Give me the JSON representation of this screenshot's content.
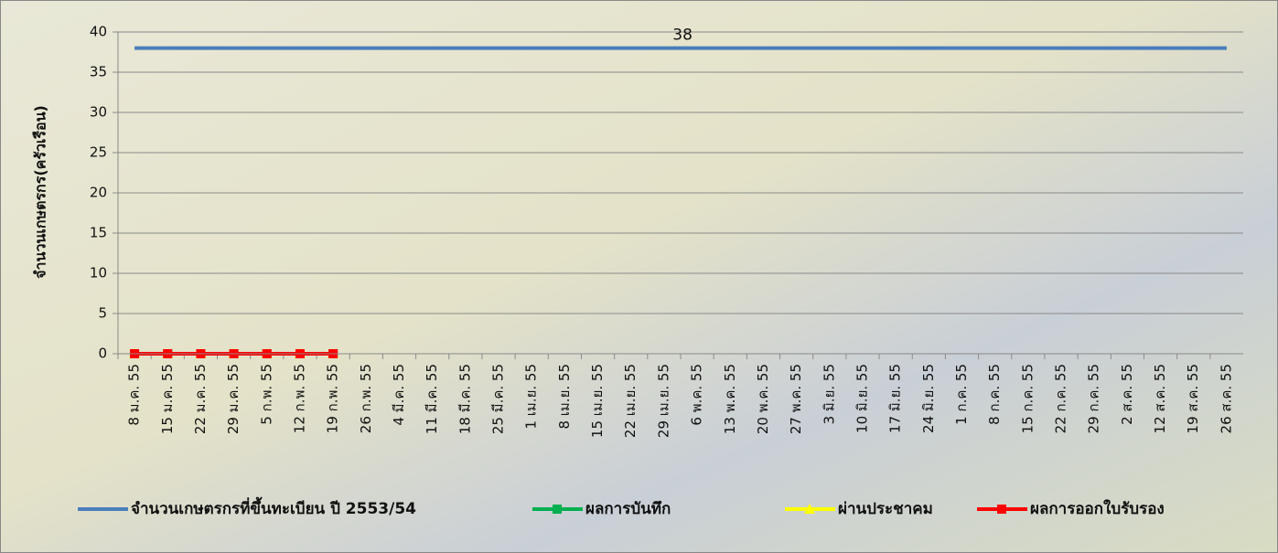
{
  "chart_data": {
    "type": "line",
    "y_label": "จำนวนเกษตรกร(ครัวเรือน)",
    "categories": [
      "8 ม.ค. 55",
      "15 ม.ค. 55",
      "22 ม.ค. 55",
      "29 ม.ค. 55",
      "5 ก.พ. 55",
      "12 ก.พ. 55",
      "19 ก.พ. 55",
      "26 ก.พ. 55",
      "4 มี.ค. 55",
      "11 มี.ค. 55",
      "18 มี.ค. 55",
      "25 มี.ค. 55",
      "1 เม.ย. 55",
      "8 เม.ย. 55",
      "15 เม.ย. 55",
      "22 เม.ย. 55",
      "29 เม.ย. 55",
      "6 พ.ค. 55",
      "13 พ.ค. 55",
      "20 พ.ค. 55",
      "27 พ.ค. 55",
      "3 มิ.ย. 55",
      "10 มิ.ย. 55",
      "17 มิ.ย. 55",
      "24 มิ.ย. 55",
      "1 ก.ค. 55",
      "8 ก.ค. 55",
      "15 ก.ค. 55",
      "22 ก.ค. 55",
      "29 ก.ค. 55",
      "2 ส.ค. 55",
      "12 ส.ค. 55",
      "19 ส.ค. 55",
      "26 ส.ค. 55"
    ],
    "series": [
      {
        "name": "จำนวนเกษตรกรที่ขึ้นทะเบียน ปี 2553/54",
        "color": "#4a7ebb",
        "marker": "none",
        "values": [
          38,
          38,
          38,
          38,
          38,
          38,
          38,
          38,
          38,
          38,
          38,
          38,
          38,
          38,
          38,
          38,
          38,
          38,
          38,
          38,
          38,
          38,
          38,
          38,
          38,
          38,
          38,
          38,
          38,
          38,
          38,
          38,
          38,
          38
        ],
        "value_labels": [
          null,
          null,
          null,
          null,
          null,
          null,
          null,
          null,
          null,
          null,
          null,
          null,
          null,
          null,
          null,
          null,
          null,
          "38",
          null,
          null,
          null,
          null,
          null,
          null,
          null,
          null,
          null,
          null,
          null,
          null,
          null,
          null,
          null,
          null
        ]
      },
      {
        "name": "ผลการบันทึก",
        "color": "#00b050",
        "marker": "square",
        "values": [
          0,
          0,
          0,
          0,
          0,
          0,
          0,
          null,
          null,
          null,
          null,
          null,
          null,
          null,
          null,
          null,
          null,
          null,
          null,
          null,
          null,
          null,
          null,
          null,
          null,
          null,
          null,
          null,
          null,
          null,
          null,
          null,
          null,
          null
        ]
      },
      {
        "name": "ผ่านประชาคม",
        "color": "#ffff00",
        "marker": "triangle",
        "values": [
          0,
          0,
          0,
          0,
          0,
          0,
          0,
          null,
          null,
          null,
          null,
          null,
          null,
          null,
          null,
          null,
          null,
          null,
          null,
          null,
          null,
          null,
          null,
          null,
          null,
          null,
          null,
          null,
          null,
          null,
          null,
          null,
          null,
          null
        ]
      },
      {
        "name": "ผลการออกใบรับรอง",
        "color": "#ff0000",
        "marker": "square",
        "values": [
          0,
          0,
          0,
          0,
          0,
          0,
          0,
          null,
          null,
          null,
          null,
          null,
          null,
          null,
          null,
          null,
          null,
          null,
          null,
          null,
          null,
          null,
          null,
          null,
          null,
          null,
          null,
          null,
          null,
          null,
          null,
          null,
          null,
          null
        ]
      }
    ],
    "ylim": [
      0,
      40
    ],
    "yticks": [
      0,
      5,
      10,
      15,
      20,
      25,
      30,
      35,
      40
    ],
    "grid": true,
    "legend": "bottom"
  }
}
